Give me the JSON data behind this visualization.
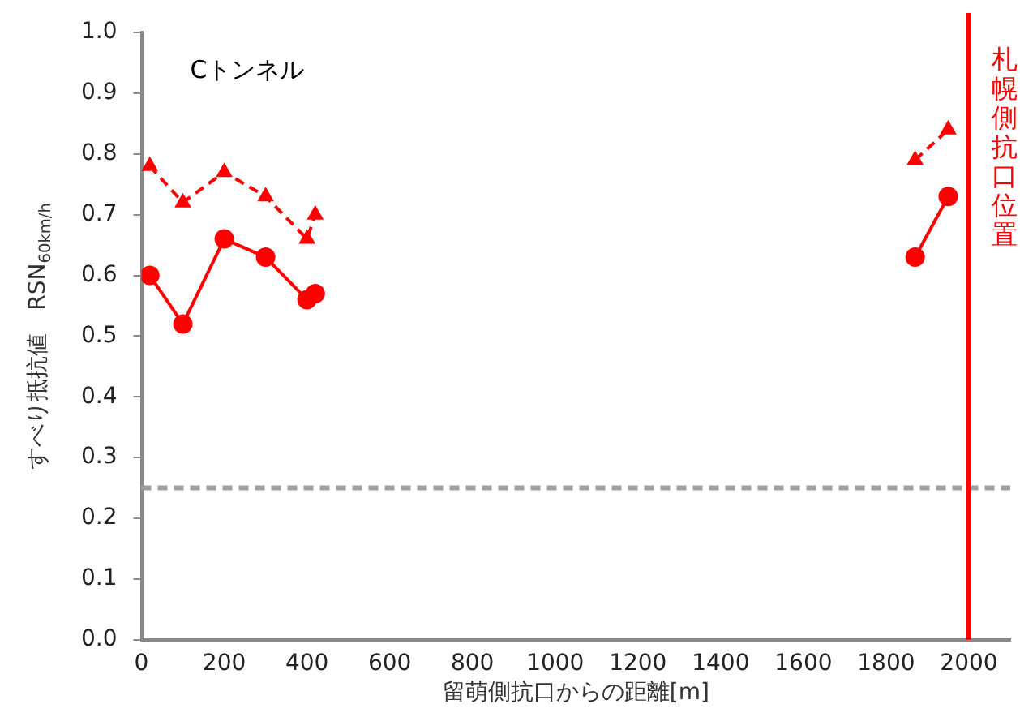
{
  "chart_data": {
    "type": "line",
    "xlabel": "留萌側抗口からの距離[m]",
    "ylabel": "すべり抵抗値　RSN$_{60km/h}$",
    "annotations": [
      "Cトンネル"
    ],
    "series": [
      {
        "type": "line",
        "color": "#ff0000",
        "marker": "circle",
        "line_style": "solid",
        "x": [
          20,
          100,
          200,
          300,
          400,
          420
        ],
        "values": [
          0.6,
          0.52,
          0.66,
          0.63,
          0.56,
          0.57
        ]
      },
      {
        "type": "line",
        "color": "#ff0000",
        "marker": "circle",
        "line_style": "solid",
        "x": [
          1870,
          1950
        ],
        "values": [
          0.63,
          0.73
        ]
      },
      {
        "type": "line",
        "color": "#ff0000",
        "marker": "triangle",
        "line_style": "dashed",
        "x": [
          20,
          100,
          200,
          300,
          400,
          420
        ],
        "values": [
          0.78,
          0.72,
          0.77,
          0.73,
          0.66,
          0.7
        ]
      },
      {
        "type": "line",
        "color": "#ff0000",
        "marker": "triangle",
        "line_style": "dashed",
        "x": [
          1870,
          1950
        ],
        "values": [
          0.79,
          0.84
        ]
      }
    ],
    "xlim": [
      0,
      2100
    ],
    "xticks": [
      0,
      200,
      400,
      600,
      800,
      1000,
      1200,
      1400,
      1600,
      1800,
      2000
    ],
    "ylim": [
      0,
      1
    ],
    "yticks": [
      {
        "value": 0,
        "label": "0.0"
      },
      {
        "value": 0.1,
        "label": "0.1"
      },
      {
        "value": 0.2,
        "label": "0.2"
      },
      {
        "value": 0.3,
        "label": "0.3"
      },
      {
        "value": 0.4,
        "label": "0.4"
      },
      {
        "value": 0.5,
        "label": "0.5"
      },
      {
        "value": 0.6,
        "label": "0.6"
      },
      {
        "value": 0.7,
        "label": "0.7"
      },
      {
        "value": 0.8,
        "label": "0.8"
      },
      {
        "value": 0.9,
        "label": "0.9"
      },
      {
        "value": 1,
        "label": "1.0"
      }
    ],
    "ref_lines": [
      {
        "axis": "y",
        "value": 0.25,
        "color": "#a0a0a0",
        "line_style": "dashed"
      },
      {
        "axis": "x",
        "value": 2000,
        "label": "札幌側抗口位置",
        "color": "#ff0000",
        "line_style": "solid"
      }
    ],
    "grid": false,
    "legend": false
  }
}
